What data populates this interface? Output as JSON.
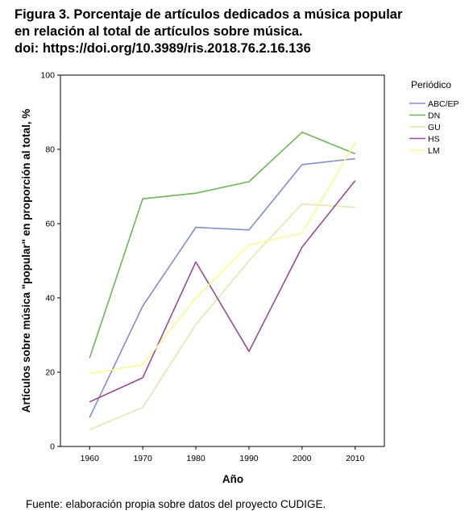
{
  "figure": {
    "title_lines": [
      "Figura 3. Porcentaje de artículos dedicados a música popular",
      "en relación al total de artículos sobre música.",
      "doi: https://doi.org/10.3989/ris.2018.76.2.16.136"
    ],
    "source": "Fuente: elaboración propia sobre datos del proyecto CUDIGE."
  },
  "chart_data": {
    "type": "line",
    "xlabel": "Año",
    "ylabel": "Artículos sobre música \"popular\" en proporción al total, %",
    "x": [
      1960,
      1970,
      1980,
      1990,
      2000,
      2010
    ],
    "xticks": [
      "1960",
      "1970",
      "1980",
      "1990",
      "2000",
      "2010"
    ],
    "xlim": [
      1954.5,
      2015.5
    ],
    "ylim": [
      0,
      100
    ],
    "yticks": [
      "0",
      "20",
      "40",
      "60",
      "80",
      "100"
    ],
    "grid": false,
    "legend": {
      "title": "Periódico",
      "position": "right"
    },
    "series": [
      {
        "name": "ABC/EP",
        "color": "#7f8fc7",
        "values": [
          7.8,
          37.8,
          59.0,
          58.3,
          75.9,
          77.5
        ]
      },
      {
        "name": "DN",
        "color": "#6fb35b",
        "values": [
          23.8,
          66.7,
          68.2,
          71.3,
          84.6,
          78.8
        ]
      },
      {
        "name": "GU",
        "color": "#e4e4b4",
        "values": [
          4.5,
          10.5,
          32.8,
          50.0,
          65.3,
          64.4
        ]
      },
      {
        "name": "HS",
        "color": "#9b4a93",
        "values": [
          12.0,
          18.5,
          49.7,
          25.6,
          53.7,
          71.6
        ]
      },
      {
        "name": "LM",
        "color": "#fdf59a",
        "values": [
          19.6,
          22.0,
          40.0,
          54.3,
          57.4,
          81.8
        ]
      }
    ]
  }
}
